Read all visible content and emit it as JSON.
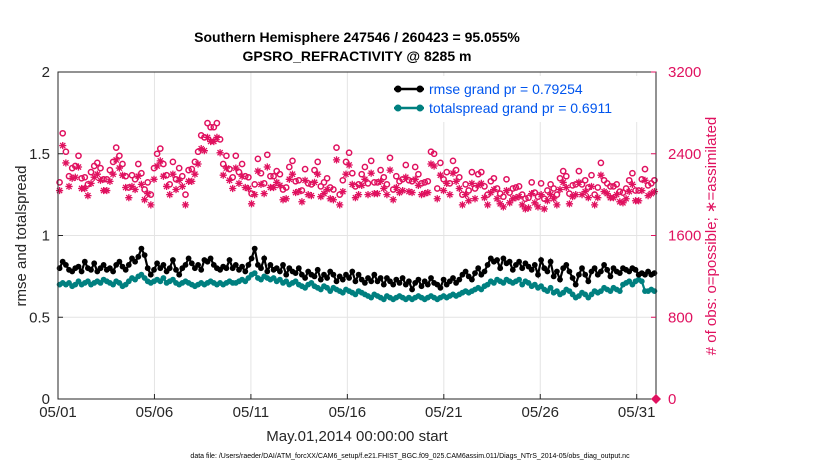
{
  "chart_data": {
    "type": "line",
    "title": "Southern Hemisphere 247546 / 260423 = 95.055%",
    "subtitle": "GPSRO_REFRACTIVITY @ 8285 m",
    "xlabel": "May.01,2014 00:00:00 start",
    "ylabel_left": "rmse and totalspread",
    "ylabel_right": "# of obs: o=possible; ∗=assimilated",
    "footnote": "data file: /Users/raeder/DAI/ATM_forcXX/CAM6_setup/f.e21.FHIST_BGC.f09_025.CAM6assim.011/Diags_NTrS_2014-05/obs_diag_output.nc",
    "x_range_days": [
      1,
      32
    ],
    "x_ticks": [
      1,
      6,
      11,
      16,
      21,
      26,
      31
    ],
    "x_tick_labels": [
      "05/01",
      "05/06",
      "05/11",
      "05/16",
      "05/21",
      "05/26",
      "05/31"
    ],
    "ylim_left": [
      0,
      2
    ],
    "y_ticks_left": [
      0,
      0.5,
      1,
      1.5,
      2
    ],
    "y_tick_labels_left": [
      "0",
      "0.5",
      "1",
      "1.5",
      "2"
    ],
    "ylim_right": [
      0,
      3200
    ],
    "y_ticks_right": [
      0,
      800,
      1600,
      2400,
      3200
    ],
    "y_tick_labels_right": [
      "0",
      "800",
      "1600",
      "2400",
      "3200"
    ],
    "grid": true,
    "legend_position": "top-right",
    "colors": {
      "rmse": "#000000",
      "spread": "#008080",
      "obs": "#e0115f",
      "legend_text": "#0055ee"
    },
    "series": [
      {
        "name": "rmse grand pr = 0.79254",
        "axis": "left",
        "marker": "dot",
        "values": [
          0.8,
          0.84,
          0.82,
          0.79,
          0.78,
          0.8,
          0.81,
          0.78,
          0.84,
          0.8,
          0.79,
          0.83,
          0.78,
          0.8,
          0.82,
          0.79,
          0.8,
          0.78,
          0.82,
          0.84,
          0.81,
          0.79,
          0.82,
          0.86,
          0.84,
          0.87,
          0.92,
          0.88,
          0.8,
          0.76,
          0.79,
          0.83,
          0.8,
          0.82,
          0.78,
          0.8,
          0.85,
          0.79,
          0.76,
          0.8,
          0.82,
          0.86,
          0.83,
          0.8,
          0.82,
          0.79,
          0.85,
          0.84,
          0.86,
          0.82,
          0.8,
          0.79,
          0.81,
          0.8,
          0.85,
          0.8,
          0.82,
          0.79,
          0.81,
          0.78,
          0.82,
          0.86,
          0.92,
          0.82,
          0.8,
          0.86,
          0.78,
          0.82,
          0.79,
          0.8,
          0.78,
          0.82,
          0.76,
          0.8,
          0.78,
          0.77,
          0.8,
          0.76,
          0.74,
          0.78,
          0.76,
          0.75,
          0.79,
          0.73,
          0.76,
          0.74,
          0.78,
          0.76,
          0.72,
          0.75,
          0.73,
          0.76,
          0.74,
          0.78,
          0.72,
          0.76,
          0.73,
          0.71,
          0.74,
          0.72,
          0.76,
          0.72,
          0.74,
          0.7,
          0.74,
          0.72,
          0.7,
          0.73,
          0.71,
          0.74,
          0.7,
          0.72,
          0.67,
          0.71,
          0.73,
          0.69,
          0.72,
          0.7,
          0.74,
          0.71,
          0.7,
          0.68,
          0.73,
          0.7,
          0.72,
          0.74,
          0.71,
          0.73,
          0.76,
          0.78,
          0.75,
          0.73,
          0.77,
          0.8,
          0.76,
          0.78,
          0.82,
          0.86,
          0.84,
          0.85,
          0.8,
          0.86,
          0.83,
          0.84,
          0.79,
          0.82,
          0.84,
          0.8,
          0.83,
          0.81,
          0.79,
          0.82,
          0.76,
          0.85,
          0.8,
          0.78,
          0.84,
          0.75,
          0.78,
          0.73,
          0.8,
          0.82,
          0.78,
          0.74,
          0.7,
          0.76,
          0.8,
          0.76,
          0.72,
          0.78,
          0.8,
          0.76,
          0.78,
          0.82,
          0.79,
          0.75,
          0.8,
          0.78,
          0.77,
          0.8,
          0.79,
          0.78,
          0.8,
          0.79,
          0.76,
          0.77,
          0.76,
          0.78,
          0.76,
          0.77
        ]
      },
      {
        "name": "totalspread grand pr = 0.6911",
        "axis": "left",
        "marker": "dot",
        "values": [
          0.7,
          0.71,
          0.7,
          0.71,
          0.69,
          0.7,
          0.72,
          0.7,
          0.71,
          0.72,
          0.7,
          0.71,
          0.72,
          0.71,
          0.73,
          0.72,
          0.71,
          0.7,
          0.72,
          0.71,
          0.69,
          0.7,
          0.72,
          0.74,
          0.73,
          0.75,
          0.76,
          0.74,
          0.72,
          0.71,
          0.72,
          0.73,
          0.72,
          0.74,
          0.71,
          0.72,
          0.73,
          0.71,
          0.7,
          0.71,
          0.72,
          0.71,
          0.7,
          0.69,
          0.7,
          0.71,
          0.7,
          0.71,
          0.72,
          0.71,
          0.7,
          0.71,
          0.7,
          0.71,
          0.72,
          0.71,
          0.71,
          0.72,
          0.73,
          0.72,
          0.74,
          0.76,
          0.77,
          0.74,
          0.73,
          0.75,
          0.74,
          0.73,
          0.74,
          0.72,
          0.73,
          0.71,
          0.72,
          0.7,
          0.71,
          0.72,
          0.7,
          0.69,
          0.68,
          0.7,
          0.71,
          0.69,
          0.68,
          0.67,
          0.69,
          0.68,
          0.66,
          0.68,
          0.67,
          0.66,
          0.65,
          0.67,
          0.66,
          0.65,
          0.64,
          0.66,
          0.65,
          0.64,
          0.63,
          0.62,
          0.64,
          0.63,
          0.62,
          0.61,
          0.63,
          0.62,
          0.61,
          0.62,
          0.63,
          0.62,
          0.61,
          0.62,
          0.61,
          0.62,
          0.63,
          0.62,
          0.61,
          0.62,
          0.63,
          0.62,
          0.61,
          0.62,
          0.63,
          0.62,
          0.63,
          0.64,
          0.63,
          0.64,
          0.65,
          0.66,
          0.65,
          0.66,
          0.67,
          0.68,
          0.67,
          0.69,
          0.7,
          0.72,
          0.71,
          0.73,
          0.72,
          0.71,
          0.73,
          0.72,
          0.71,
          0.72,
          0.73,
          0.7,
          0.72,
          0.71,
          0.69,
          0.7,
          0.68,
          0.69,
          0.67,
          0.66,
          0.68,
          0.65,
          0.66,
          0.64,
          0.65,
          0.67,
          0.66,
          0.64,
          0.62,
          0.63,
          0.65,
          0.64,
          0.62,
          0.64,
          0.66,
          0.65,
          0.66,
          0.68,
          0.67,
          0.66,
          0.68,
          0.67,
          0.66,
          0.7,
          0.71,
          0.72,
          0.7,
          0.72,
          0.73,
          0.72,
          0.66,
          0.66,
          0.67,
          0.66
        ]
      },
      {
        "name": "obs possible",
        "axis": "right",
        "marker": "circle",
        "values": [
          2120,
          2600,
          2420,
          2180,
          2260,
          2280,
          2380,
          2160,
          2170,
          2100,
          2220,
          2280,
          2310,
          2260,
          2150,
          2150,
          2240,
          2320,
          2460,
          2380,
          2300,
          2180,
          2070,
          2190,
          2150,
          2300,
          2210,
          2050,
          2120,
          2000,
          2260,
          2400,
          2450,
          2300,
          2190,
          2100,
          2320,
          2150,
          2260,
          2180,
          2000,
          2240,
          2250,
          2320,
          2420,
          2580,
          2560,
          2700,
          2660,
          2660,
          2700,
          2540,
          2300,
          2380,
          2250,
          2170,
          2380,
          2220,
          2300,
          2180,
          2170,
          2010,
          2100,
          2350,
          2210,
          2110,
          2390,
          2180,
          2180,
          2230,
          2200,
          2050,
          2070,
          2270,
          2330,
          2130,
          2140,
          2040,
          2250,
          2110,
          2100,
          2240,
          2320,
          2080,
          2120,
          2160,
          2070,
          2050,
          2460,
          2000,
          2140,
          2320,
          2410,
          2210,
          2080,
          2100,
          2200,
          2270,
          2110,
          2330,
          2120,
          2120,
          2240,
          2170,
          2100,
          2360,
          2050,
          2180,
          2130,
          2150,
          2290,
          2140,
          2130,
          2270,
          2200,
          2110,
          2120,
          2130,
          2420,
          2400,
          2060,
          2310,
          2150,
          2220,
          2110,
          2330,
          2240,
          2170,
          2000,
          2100,
          2040,
          2220,
          2060,
          2200,
          2220,
          2080,
          2000,
          2130,
          2160,
          2060,
          2010,
          1980,
          2150,
          2020,
          2060,
          2070,
          2080,
          2000,
          1960,
          1970,
          2120,
          2020,
          1980,
          2110,
          1960,
          2040,
          2100,
          2060,
          2000,
          2160,
          2230,
          2180,
          2010,
          2090,
          2100,
          2230,
          2100,
          2140,
          2070,
          2190,
          2000,
          2070,
          2310,
          2140,
          2110,
          2080,
          2080,
          2100,
          2030,
          2020,
          2060,
          2140,
          2210,
          2040,
          2040,
          2150,
          2250,
          2090,
          2110,
          2140
        ]
      },
      {
        "name": "obs assimilated",
        "axis": "right",
        "marker": "asterisk",
        "values": [
          2040,
          2480,
          2310,
          2080,
          2160,
          2170,
          2270,
          2060,
          2060,
          1990,
          2110,
          2170,
          2200,
          2140,
          2040,
          2040,
          2130,
          2200,
          2340,
          2260,
          2190,
          2070,
          1970,
          2080,
          2050,
          2180,
          2100,
          1950,
          2010,
          1900,
          2150,
          2280,
          2330,
          2180,
          2080,
          2000,
          2200,
          2050,
          2140,
          2080,
          1900,
          2130,
          2130,
          2200,
          2300,
          2450,
          2430,
          2560,
          2520,
          2520,
          2560,
          2410,
          2190,
          2260,
          2140,
          2060,
          2260,
          2110,
          2180,
          2070,
          2060,
          1910,
          2000,
          2230,
          2100,
          2010,
          2270,
          2070,
          2070,
          2120,
          2090,
          1950,
          1960,
          2150,
          2200,
          2020,
          2030,
          1930,
          2140,
          2000,
          1990,
          2120,
          2200,
          1980,
          2010,
          2050,
          1960,
          1950,
          2340,
          1900,
          2030,
          2200,
          2290,
          2100,
          1970,
          2000,
          2090,
          2150,
          2000,
          2210,
          2010,
          2010,
          2130,
          2060,
          2000,
          2240,
          1950,
          2070,
          2020,
          2040,
          2170,
          2030,
          2020,
          2150,
          2090,
          2000,
          2010,
          2020,
          2300,
          2280,
          1960,
          2190,
          2040,
          2110,
          2000,
          2210,
          2130,
          2060,
          1900,
          2000,
          1940,
          2110,
          1960,
          2090,
          2110,
          1970,
          1900,
          2020,
          2050,
          1960,
          1910,
          1880,
          2040,
          1920,
          1960,
          1970,
          1980,
          1900,
          1860,
          1870,
          2010,
          1920,
          1880,
          2000,
          1860,
          1940,
          2000,
          1960,
          1900,
          2050,
          2120,
          2070,
          1910,
          1980,
          2000,
          2120,
          2000,
          2030,
          1970,
          2080,
          1900,
          1970,
          2190,
          2030,
          2010,
          1970,
          1970,
          2000,
          1930,
          1920,
          1960,
          2030,
          2100,
          1940,
          1940,
          2040,
          2140,
          1990,
          2010,
          2030
        ]
      }
    ]
  }
}
